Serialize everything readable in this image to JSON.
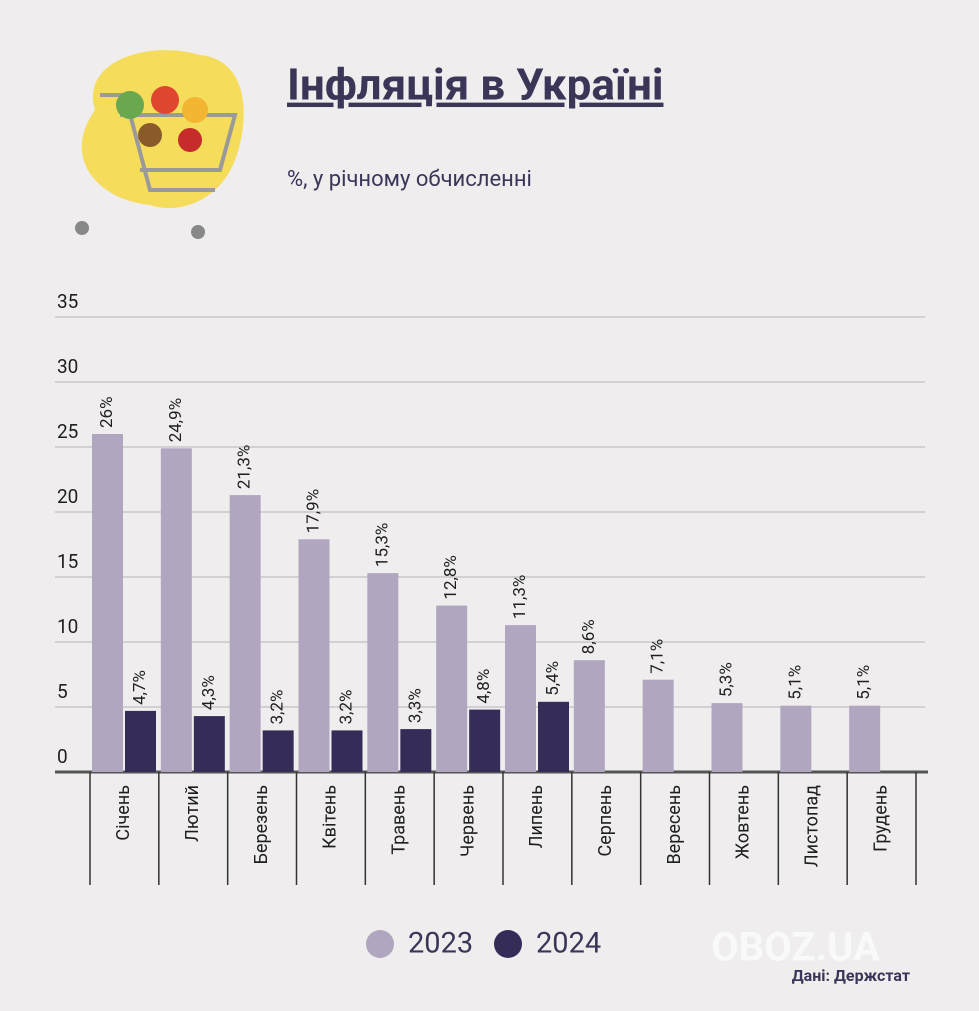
{
  "chart_data": {
    "type": "bar",
    "title": "Інфляція в Україні",
    "subtitle": "%, у річному обчисленні",
    "source": "Дані: Держстат",
    "watermark": "OBOZ.UA",
    "categories": [
      "Січень",
      "Лютий",
      "Березень",
      "Квітень",
      "Травень",
      "Червень",
      "Липень",
      "Серпень",
      "Вересень",
      "Жовтень",
      "Листопад",
      "Грудень"
    ],
    "series": [
      {
        "name": "2023",
        "color": "#b1a6c0",
        "values": [
          26,
          24.9,
          21.3,
          17.9,
          15.3,
          12.8,
          11.3,
          8.6,
          7.1,
          5.3,
          5.1,
          5.1
        ],
        "value_labels": [
          "26%",
          "24,9%",
          "21,3%",
          "17,9%",
          "15,3%",
          "12,8%",
          "11,3%",
          "8,6%",
          "7,1%",
          "5,3%",
          "5,1%",
          "5,1%"
        ]
      },
      {
        "name": "2024",
        "color": "#352d58",
        "values": [
          4.7,
          4.3,
          3.2,
          3.2,
          3.3,
          4.8,
          5.4,
          null,
          null,
          null,
          null,
          null
        ],
        "value_labels": [
          "4,7%",
          "4,3%",
          "3,2%",
          "3,2%",
          "3,3%",
          "4,8%",
          "5,4%",
          null,
          null,
          null,
          null,
          null
        ]
      }
    ],
    "ylim": [
      0,
      35
    ],
    "yticks": [
      0,
      5,
      10,
      15,
      20,
      25,
      30,
      35
    ],
    "grid": true
  }
}
